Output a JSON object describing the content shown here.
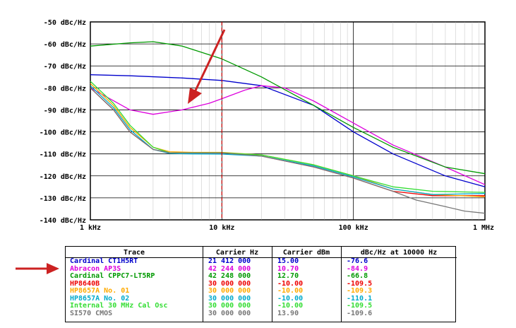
{
  "chart_data": {
    "type": "line",
    "xscale": "log",
    "xlim": [
      1000,
      1000000
    ],
    "ylim": [
      -140,
      -50
    ],
    "grid": true,
    "y_ticks": [
      "-50 dBc/Hz",
      "-60 dBc/Hz",
      "-70 dBc/Hz",
      "-80 dBc/Hz",
      "-90 dBc/Hz",
      "-100 dBc/Hz",
      "-110 dBc/Hz",
      "-120 dBc/Hz",
      "-130 dBc/Hz",
      "-140 dBc/Hz"
    ],
    "y_tick_values": [
      -50,
      -60,
      -70,
      -80,
      -90,
      -100,
      -110,
      -120,
      -130,
      -140
    ],
    "x_ticks": [
      "1 kHz",
      "10 kHz",
      "100 kHz",
      "1 MHz"
    ],
    "x_tick_values": [
      1000,
      10000,
      100000,
      1000000
    ],
    "marker_x": 10000,
    "series": [
      {
        "name": "Cardinal CT1H5RT",
        "color": "#0000cc",
        "x": [
          1000,
          2000,
          5000,
          10000,
          20000,
          50000,
          100000,
          200000,
          500000,
          1000000
        ],
        "y": [
          -74,
          -74.5,
          -75.5,
          -76.6,
          -79,
          -88,
          -100,
          -110,
          -120,
          -125
        ]
      },
      {
        "name": "Abracon AP3S",
        "color": "#dd00dd",
        "x": [
          1000,
          2000,
          3000,
          5000,
          8000,
          10000,
          15000,
          20000,
          30000,
          50000,
          100000,
          200000,
          500000,
          1000000
        ],
        "y": [
          -80,
          -90,
          -92,
          -90,
          -87,
          -84.9,
          -81,
          -79,
          -80,
          -86,
          -96,
          -106,
          -116,
          -124
        ]
      },
      {
        "name": "Cardinal CPPC7-LT5RP",
        "color": "#009900",
        "x": [
          1000,
          2000,
          3000,
          5000,
          10000,
          20000,
          50000,
          100000,
          200000,
          500000,
          1000000
        ],
        "y": [
          -61,
          -59.5,
          -59,
          -61,
          -66.8,
          -75,
          -88,
          -98,
          -107,
          -116,
          -119
        ]
      },
      {
        "name": "HP8640B",
        "color": "#ee0000",
        "x": [
          1000,
          1500,
          2000,
          3000,
          4000,
          6000,
          10000,
          20000,
          50000,
          100000,
          200000,
          400000,
          1000000
        ],
        "y": [
          -80,
          -90,
          -100,
          -108,
          -109.5,
          -109.5,
          -109.5,
          -111,
          -116,
          -121,
          -127,
          -129,
          -129
        ]
      },
      {
        "name": "HP8657A No. 01",
        "color": "#ffaa00",
        "x": [
          1000,
          1500,
          2000,
          3000,
          4000,
          6000,
          10000,
          20000,
          50000,
          100000,
          200000,
          400000,
          1000000
        ],
        "y": [
          -78,
          -88,
          -98,
          -107,
          -109,
          -109.3,
          -109.3,
          -110.5,
          -115,
          -120,
          -126,
          -128.5,
          -129.5
        ]
      },
      {
        "name": "HP8657A No. 02",
        "color": "#00aacc",
        "x": [
          1000,
          1500,
          2000,
          3000,
          4000,
          6000,
          10000,
          20000,
          50000,
          100000,
          200000,
          400000,
          1000000
        ],
        "y": [
          -79,
          -89,
          -99,
          -108,
          -109.8,
          -110,
          -110.1,
          -111,
          -115.5,
          -120.5,
          -126,
          -128.5,
          -128
        ]
      },
      {
        "name": "Internal 30 MHz Cal Osc",
        "color": "#33dd33",
        "x": [
          1000,
          1500,
          2000,
          3000,
          4000,
          6000,
          10000,
          20000,
          50000,
          100000,
          200000,
          400000,
          1000000
        ],
        "y": [
          -77,
          -87,
          -97,
          -107,
          -109.5,
          -109.5,
          -109.5,
          -110.5,
          -115,
          -120,
          -125,
          -127,
          -127.5
        ]
      },
      {
        "name": "SI570 CMOS",
        "color": "#777777",
        "x": [
          1000,
          1500,
          2000,
          3000,
          4000,
          6000,
          10000,
          20000,
          50000,
          100000,
          200000,
          300000,
          500000,
          700000,
          1000000
        ],
        "y": [
          -80,
          -90,
          -100,
          -108,
          -109.5,
          -109.6,
          -109.6,
          -111,
          -116,
          -121,
          -127,
          -131,
          -134,
          -136,
          -137
        ]
      }
    ]
  },
  "table": {
    "headers": [
      "Trace",
      "Carrier Hz",
      "Carrier dBm",
      "dBc/Hz at 10000 Hz"
    ],
    "rows": [
      {
        "trace": "Cardinal CT1H5RT",
        "hz": "21 412 000",
        "dbm": "15.00",
        "dbc": "-76.6",
        "color": "#0000cc"
      },
      {
        "trace": "Abracon AP3S",
        "hz": "42 244 000",
        "dbm": "10.70",
        "dbc": "-84.9",
        "color": "#dd00dd"
      },
      {
        "trace": "Cardinal CPPC7-LT5RP",
        "hz": "42 248 000",
        "dbm": "12.70",
        "dbc": "-66.8",
        "color": "#009900"
      },
      {
        "trace": "HP8640B",
        "hz": "30 000 000",
        "dbm": "-10.00",
        "dbc": "-109.5",
        "color": "#ee0000"
      },
      {
        "trace": "HP8657A No. 01",
        "hz": "30 000 000",
        "dbm": "-10.00",
        "dbc": "-109.3",
        "color": "#ffaa00"
      },
      {
        "trace": "HP8657A No. 02",
        "hz": "30 000 000",
        "dbm": "-10.00",
        "dbc": "-110.1",
        "color": "#00aacc"
      },
      {
        "trace": "Internal 30 MHz Cal Osc",
        "hz": "30 000 000",
        "dbm": "-10.00",
        "dbc": "-109.5",
        "color": "#33dd33"
      },
      {
        "trace": "SI570 CMOS",
        "hz": "30 000 000",
        "dbm": "13.90",
        "dbc": "-109.6",
        "color": "#777777"
      }
    ]
  },
  "annotation_color": "#cc2222"
}
